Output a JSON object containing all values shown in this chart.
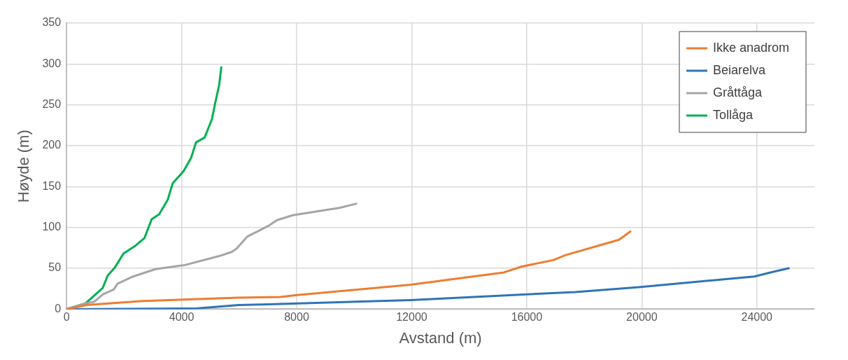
{
  "chart_data": {
    "type": "line",
    "xlabel": "Avstand (m)",
    "ylabel": "Høyde (m)",
    "xlim": [
      0,
      26000
    ],
    "xticks": [
      0,
      4000,
      8000,
      12000,
      16000,
      20000,
      24000
    ],
    "ylim": [
      0,
      350
    ],
    "yticks": [
      0,
      50,
      100,
      150,
      200,
      250,
      300,
      350
    ],
    "grid": true,
    "legend": "top right",
    "marker": "none",
    "line_style": "solid",
    "series": [
      {
        "name": "Ikke anadrom",
        "color": "#ed7d31",
        "x": [
          0,
          700,
          2660,
          5990,
          7440,
          7960,
          11960,
          15210,
          15810,
          16920,
          17340,
          19210,
          19600
        ],
        "values": [
          0,
          5,
          10,
          14,
          15,
          17,
          30,
          45,
          52,
          60,
          66,
          85,
          95
        ]
      },
      {
        "name": "Beiarelva",
        "color": "#2e75b6",
        "x": [
          0,
          4540,
          5990,
          7020,
          11960,
          15890,
          17690,
          19900,
          23920,
          24600,
          25110
        ],
        "values": [
          0,
          1,
          5,
          6,
          11,
          18,
          21,
          27,
          40,
          46,
          50
        ]
      },
      {
        "name": "Gråttåga",
        "color": "#a5a5a5",
        "x": [
          0,
          660,
          960,
          1260,
          1640,
          1770,
          2320,
          3090,
          4120,
          5310,
          5740,
          5910,
          6160,
          6290,
          6630,
          7020,
          7320,
          7870,
          9490,
          10070
        ],
        "values": [
          0,
          7,
          9,
          18,
          24,
          31,
          40,
          49,
          54,
          65,
          70,
          74,
          84,
          89,
          95,
          102,
          109,
          115,
          124,
          129
        ]
      },
      {
        "name": "Tollåga",
        "color": "#00b050",
        "x": [
          0,
          660,
          1260,
          1430,
          1680,
          1980,
          2370,
          2710,
          2960,
          3220,
          3520,
          3690,
          4070,
          4330,
          4500,
          4800,
          5050,
          5180,
          5310,
          5380
        ],
        "values": [
          0,
          7,
          26,
          41,
          51,
          68,
          77,
          87,
          110,
          116,
          134,
          154,
          169,
          185,
          204,
          210,
          232,
          254,
          275,
          296
        ]
      }
    ]
  }
}
